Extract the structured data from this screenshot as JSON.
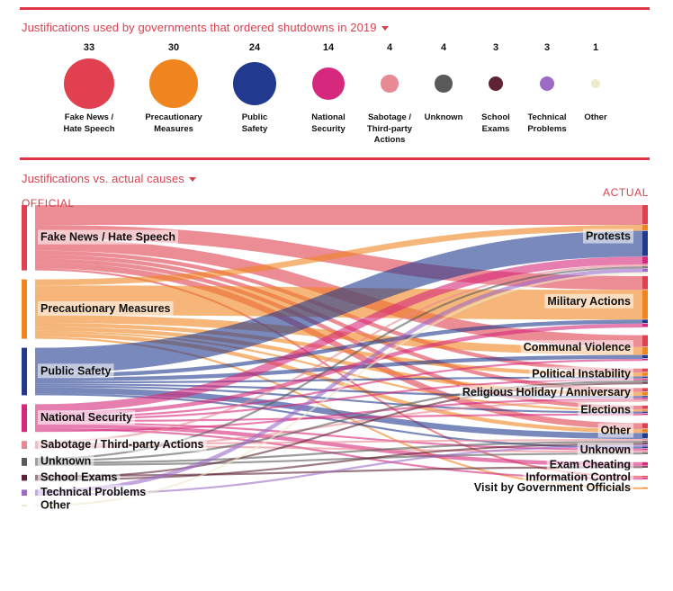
{
  "top": {
    "title": "Justifications used by governments that ordered shutdowns in 2019"
  },
  "bottom": {
    "title": "Justifications vs. actual causes",
    "official_label": "OFFICIAL",
    "actual_label": "ACTUAL"
  },
  "colors": {
    "accent": "#e03546",
    "fake_news": "#e0404f",
    "precautionary": "#f0851f",
    "public_safety": "#213a8e",
    "national_security": "#d6287c",
    "sabotage": "#e88a94",
    "unknown": "#5a5a5a",
    "school_exams": "#5e2434",
    "technical": "#9b6bc7",
    "other": "#eeeacc"
  },
  "chart_data": [
    {
      "type": "bubble",
      "categories": [
        "Fake News / Hate Speech",
        "Precautionary Measures",
        "Public Safety",
        "National Security",
        "Sabotage / Third-party Actions",
        "Unknown",
        "School Exams",
        "Technical Problems",
        "Other"
      ],
      "display_labels": [
        "Fake News /\nHate Speech",
        "Precautionary\nMeasures",
        "Public\nSafety",
        "National\nSecurity",
        "Sabotage /\nThird-party\nActions",
        "Unknown",
        "School\nExams",
        "Technical\nProblems",
        "Other"
      ],
      "values": [
        33,
        30,
        24,
        14,
        4,
        4,
        3,
        3,
        1
      ],
      "colors": [
        "#e0404f",
        "#f0851f",
        "#213a8e",
        "#d6287c",
        "#e88a94",
        "#5a5a5a",
        "#5e2434",
        "#9b6bc7",
        "#eeeacc"
      ]
    },
    {
      "type": "sankey",
      "sources": [
        {
          "name": "Fake News / Hate Speech",
          "value": 33,
          "color": "#e0404f"
        },
        {
          "name": "Precautionary Measures",
          "value": 30,
          "color": "#f0851f"
        },
        {
          "name": "Public Safety",
          "value": 24,
          "color": "#213a8e"
        },
        {
          "name": "National Security",
          "value": 14,
          "color": "#d6287c"
        },
        {
          "name": "Sabotage / Third-party Actions",
          "value": 4,
          "color": "#e88a94"
        },
        {
          "name": "Unknown",
          "value": 4,
          "color": "#5a5a5a"
        },
        {
          "name": "School Exams",
          "value": 3,
          "color": "#5e2434"
        },
        {
          "name": "Technical Problems",
          "value": 3,
          "color": "#9b6bc7"
        },
        {
          "name": "Other",
          "value": 1,
          "color": "#eeeacc"
        }
      ],
      "targets": [
        {
          "name": "Protests",
          "value": 32
        },
        {
          "name": "Military Actions",
          "value": 26
        },
        {
          "name": "Communal Violence",
          "value": 13
        },
        {
          "name": "Political Instability",
          "value": 6
        },
        {
          "name": "Religious Holiday / Anniversary",
          "value": 5
        },
        {
          "name": "Elections",
          "value": 5
        },
        {
          "name": "Other",
          "value": 8
        },
        {
          "name": "Unknown",
          "value": 4
        },
        {
          "name": "Exam Cheating",
          "value": 3
        },
        {
          "name": "Information Control",
          "value": 2
        },
        {
          "name": "Visit by Government Officials",
          "value": 1
        }
      ],
      "flows": [
        {
          "source": "Fake News / Hate Speech",
          "target": "Protests",
          "value": 10
        },
        {
          "source": "Fake News / Hate Speech",
          "target": "Military Actions",
          "value": 7
        },
        {
          "source": "Fake News / Hate Speech",
          "target": "Communal Violence",
          "value": 6
        },
        {
          "source": "Fake News / Hate Speech",
          "target": "Political Instability",
          "value": 2
        },
        {
          "source": "Fake News / Hate Speech",
          "target": "Religious Holiday / Anniversary",
          "value": 2
        },
        {
          "source": "Fake News / Hate Speech",
          "target": "Elections",
          "value": 2
        },
        {
          "source": "Fake News / Hate Speech",
          "target": "Other",
          "value": 3
        },
        {
          "source": "Fake News / Hate Speech",
          "target": "Information Control",
          "value": 1
        },
        {
          "source": "Precautionary Measures",
          "target": "Protests",
          "value": 3
        },
        {
          "source": "Precautionary Measures",
          "target": "Military Actions",
          "value": 15
        },
        {
          "source": "Precautionary Measures",
          "target": "Communal Violence",
          "value": 4
        },
        {
          "source": "Precautionary Measures",
          "target": "Political Instability",
          "value": 2
        },
        {
          "source": "Precautionary Measures",
          "target": "Religious Holiday / Anniversary",
          "value": 2
        },
        {
          "source": "Precautionary Measures",
          "target": "Elections",
          "value": 1
        },
        {
          "source": "Precautionary Measures",
          "target": "Other",
          "value": 2
        },
        {
          "source": "Precautionary Measures",
          "target": "Visit by Government Officials",
          "value": 1
        },
        {
          "source": "Public Safety",
          "target": "Protests",
          "value": 13
        },
        {
          "source": "Public Safety",
          "target": "Military Actions",
          "value": 2
        },
        {
          "source": "Public Safety",
          "target": "Communal Violence",
          "value": 2
        },
        {
          "source": "Public Safety",
          "target": "Political Instability",
          "value": 1
        },
        {
          "source": "Public Safety",
          "target": "Religious Holiday / Anniversary",
          "value": 1
        },
        {
          "source": "Public Safety",
          "target": "Elections",
          "value": 1
        },
        {
          "source": "Public Safety",
          "target": "Other",
          "value": 3
        },
        {
          "source": "Public Safety",
          "target": "Unknown",
          "value": 1
        },
        {
          "source": "National Security",
          "target": "Protests",
          "value": 4
        },
        {
          "source": "National Security",
          "target": "Military Actions",
          "value": 2
        },
        {
          "source": "National Security",
          "target": "Communal Violence",
          "value": 1
        },
        {
          "source": "National Security",
          "target": "Political Instability",
          "value": 1
        },
        {
          "source": "National Security",
          "target": "Elections",
          "value": 1
        },
        {
          "source": "National Security",
          "target": "Unknown",
          "value": 1
        },
        {
          "source": "National Security",
          "target": "Exam Cheating",
          "value": 2
        },
        {
          "source": "National Security",
          "target": "Information Control",
          "value": 1
        },
        {
          "source": "National Security",
          "target": "Religious Holiday / Anniversary",
          "value": 1
        },
        {
          "source": "Sabotage / Third-party Actions",
          "target": "Protests",
          "value": 1
        },
        {
          "source": "Sabotage / Third-party Actions",
          "target": "Other",
          "value": 1
        },
        {
          "source": "Sabotage / Third-party Actions",
          "target": "Unknown",
          "value": 1
        },
        {
          "source": "Sabotage / Third-party Actions",
          "target": "Religious Holiday / Anniversary",
          "value": 1
        },
        {
          "source": "Unknown",
          "target": "Protests",
          "value": 1
        },
        {
          "source": "Unknown",
          "target": "Political Instability",
          "value": 1
        },
        {
          "source": "Unknown",
          "target": "Other",
          "value": 1
        },
        {
          "source": "Unknown",
          "target": "Unknown",
          "value": 1
        },
        {
          "source": "School Exams",
          "target": "Exam Cheating",
          "value": 1
        },
        {
          "source": "School Exams",
          "target": "Political Instability",
          "value": 1
        },
        {
          "source": "School Exams",
          "target": "Other",
          "value": 1
        },
        {
          "source": "Technical Problems",
          "target": "Protests",
          "value": 2
        },
        {
          "source": "Technical Problems",
          "target": "Other",
          "value": 1
        },
        {
          "source": "Other",
          "target": "Protests",
          "value": 1
        }
      ]
    }
  ]
}
